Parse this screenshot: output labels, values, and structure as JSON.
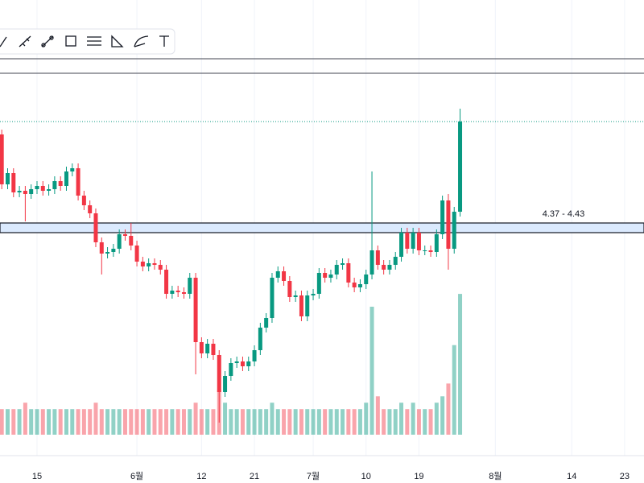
{
  "chart_data": {
    "type": "candlestick",
    "xlim": [
      -0.3,
      109.3
    ],
    "xticks": [
      {
        "value": 6,
        "label": "15"
      },
      {
        "value": 23,
        "label": "6월"
      },
      {
        "value": 34,
        "label": "12"
      },
      {
        "value": 43,
        "label": "21"
      },
      {
        "value": 53,
        "label": "7월"
      },
      {
        "value": 62,
        "label": "10"
      },
      {
        "value": 71,
        "label": "19"
      },
      {
        "value": 84,
        "label": "8월"
      },
      {
        "value": 97,
        "label": "14"
      },
      {
        "value": 106,
        "label": "23"
      }
    ],
    "ylim": [
      3.0,
      5.5
    ],
    "grid": true,
    "up_color": "#089981",
    "down_color": "#f23645",
    "open": [
      4.98,
      4.67,
      4.74,
      4.62,
      4.63,
      4.61,
      4.64,
      4.66,
      4.63,
      4.64,
      4.69,
      4.66,
      4.75,
      4.77,
      4.6,
      4.54,
      4.49,
      4.31,
      4.24,
      4.25,
      4.27,
      4.36,
      4.35,
      4.29,
      4.19,
      4.16,
      4.18,
      4.17,
      4.14,
      3.99,
      4.01,
      4.0,
      3.99,
      4.09,
      3.69,
      3.62,
      3.68,
      3.61,
      3.38,
      3.48,
      3.56,
      3.57,
      3.54,
      3.57,
      3.64,
      3.78,
      3.84,
      4.09,
      4.13,
      4.07,
      3.97,
      3.98,
      3.85,
      3.98,
      3.99,
      4.12,
      4.09,
      4.11,
      4.17,
      4.18,
      4.06,
      4.03,
      4.05,
      4.11,
      4.26,
      4.17,
      4.14,
      4.17,
      4.22,
      4.37,
      4.27,
      4.37,
      4.26,
      4.26,
      4.25,
      4.36,
      4.57,
      4.27,
      4.5
    ],
    "high": [
      5.01,
      4.77,
      4.77,
      4.66,
      4.66,
      4.67,
      4.69,
      4.69,
      4.67,
      4.72,
      4.72,
      4.78,
      4.8,
      4.8,
      4.63,
      4.57,
      4.52,
      4.34,
      4.28,
      4.3,
      4.39,
      4.39,
      4.43,
      4.32,
      4.22,
      4.21,
      4.21,
      4.2,
      4.17,
      4.04,
      4.04,
      4.03,
      4.12,
      4.12,
      3.72,
      3.71,
      3.71,
      3.64,
      3.51,
      3.59,
      3.6,
      3.6,
      3.6,
      3.67,
      3.81,
      3.87,
      4.12,
      4.16,
      4.16,
      4.1,
      4.01,
      4.01,
      4.01,
      4.02,
      4.15,
      4.15,
      4.14,
      4.2,
      4.21,
      4.21,
      4.09,
      4.08,
      4.14,
      4.75,
      4.29,
      4.2,
      4.2,
      4.25,
      4.4,
      4.4,
      4.4,
      4.4,
      4.29,
      4.29,
      4.39,
      4.6,
      4.61,
      4.53,
      5.14
    ],
    "low": [
      4.64,
      4.64,
      4.59,
      4.59,
      4.44,
      4.58,
      4.61,
      4.6,
      4.6,
      4.61,
      4.63,
      4.63,
      4.72,
      4.57,
      4.51,
      4.46,
      4.28,
      4.11,
      4.21,
      4.22,
      4.24,
      4.32,
      4.26,
      4.16,
      4.13,
      4.13,
      4.14,
      4.11,
      3.96,
      3.96,
      3.97,
      3.96,
      3.96,
      3.49,
      3.59,
      3.59,
      3.58,
      3.19,
      3.35,
      3.45,
      3.53,
      3.51,
      3.51,
      3.54,
      3.61,
      3.75,
      3.81,
      4.06,
      4.04,
      3.94,
      3.94,
      3.82,
      3.82,
      3.95,
      3.96,
      4.06,
      4.06,
      4.08,
      4.14,
      4.03,
      4.0,
      4.0,
      4.02,
      4.08,
      4.14,
      4.11,
      4.11,
      4.14,
      4.19,
      4.24,
      4.24,
      4.23,
      4.23,
      4.22,
      4.22,
      4.33,
      4.14,
      4.24,
      4.47
    ],
    "close": [
      4.67,
      4.74,
      4.62,
      4.63,
      4.61,
      4.64,
      4.66,
      4.63,
      4.64,
      4.69,
      4.66,
      4.75,
      4.77,
      4.6,
      4.54,
      4.49,
      4.31,
      4.24,
      4.25,
      4.27,
      4.36,
      4.35,
      4.29,
      4.19,
      4.16,
      4.18,
      4.17,
      4.14,
      3.99,
      4.01,
      4.0,
      3.99,
      4.09,
      3.69,
      3.62,
      3.68,
      3.61,
      3.38,
      3.48,
      3.56,
      3.57,
      3.54,
      3.57,
      3.64,
      3.78,
      3.84,
      4.09,
      4.13,
      4.07,
      3.97,
      3.98,
      3.85,
      3.98,
      3.99,
      4.12,
      4.09,
      4.11,
      4.17,
      4.18,
      4.06,
      4.03,
      4.05,
      4.11,
      4.26,
      4.17,
      4.14,
      4.17,
      4.22,
      4.37,
      4.27,
      4.37,
      4.26,
      4.26,
      4.25,
      4.36,
      4.57,
      4.27,
      4.5,
      5.06
    ],
    "volume": [
      4,
      4,
      4,
      4,
      5,
      4,
      4,
      4,
      4,
      4,
      4,
      4,
      4,
      4,
      4,
      4,
      5,
      4,
      4,
      4,
      4,
      4,
      4,
      4,
      4,
      4,
      4,
      4,
      4,
      4,
      4,
      4,
      4,
      5,
      4,
      4,
      4,
      7,
      5,
      4,
      4,
      4,
      4,
      4,
      4,
      4,
      5,
      4,
      4,
      4,
      4,
      4,
      4,
      4,
      4,
      4,
      4,
      4,
      4,
      4,
      4,
      4,
      5,
      20,
      6,
      4,
      4,
      4,
      5,
      4,
      5,
      4,
      4,
      4,
      5,
      6,
      8,
      14,
      22
    ],
    "volume_lim": [
      0,
      60
    ],
    "levels": [
      5.45,
      5.36
    ],
    "zone": {
      "low": 4.37,
      "high": 4.43,
      "label": "4.37 - 4.43",
      "color": "#dbeafe"
    }
  }
}
